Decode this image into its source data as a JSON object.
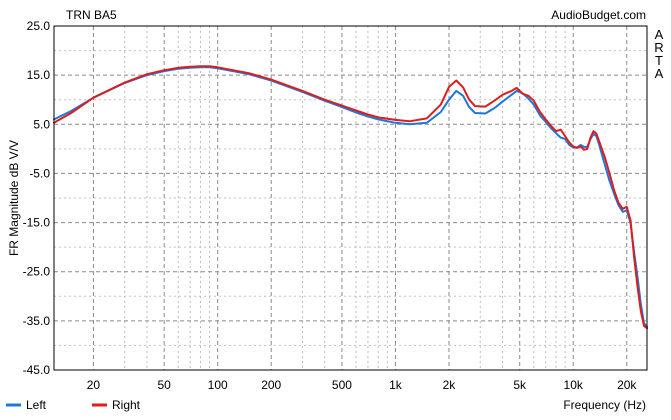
{
  "chart_data": {
    "type": "line",
    "title": "TRN BA5",
    "watermark": "AudioBudget.com",
    "side_label": [
      "A",
      "R",
      "T",
      "A"
    ],
    "xlabel": "Frequency (Hz)",
    "ylabel": "FR Magnitude dB V/V",
    "x_scale": "log",
    "xlim": [
      12,
      26000
    ],
    "ylim": [
      -45,
      25
    ],
    "grid": true,
    "legend_position": "bottom-left",
    "x_ticks": [
      {
        "value": 20,
        "label": "20"
      },
      {
        "value": 50,
        "label": "50"
      },
      {
        "value": 100,
        "label": "100"
      },
      {
        "value": 200,
        "label": "200"
      },
      {
        "value": 500,
        "label": "500"
      },
      {
        "value": 1000,
        "label": "1k"
      },
      {
        "value": 2000,
        "label": "2k"
      },
      {
        "value": 5000,
        "label": "5k"
      },
      {
        "value": 10000,
        "label": "10k"
      },
      {
        "value": 20000,
        "label": "20k"
      }
    ],
    "y_ticks": [
      {
        "value": 25,
        "label": "25.0"
      },
      {
        "value": 15,
        "label": "15.0"
      },
      {
        "value": 5,
        "label": "5.0"
      },
      {
        "value": -5,
        "label": "-5.0"
      },
      {
        "value": -15,
        "label": "-15.0"
      },
      {
        "value": -25,
        "label": "-25.0"
      },
      {
        "value": -35,
        "label": "-35.0"
      },
      {
        "value": -45,
        "label": "-45.0"
      }
    ],
    "series": [
      {
        "name": "Left",
        "color": "#1e78dc",
        "points": [
          [
            12,
            6.0
          ],
          [
            15,
            7.7
          ],
          [
            20,
            10.4
          ],
          [
            30,
            13.4
          ],
          [
            40,
            15.0
          ],
          [
            50,
            15.8
          ],
          [
            60,
            16.3
          ],
          [
            70,
            16.5
          ],
          [
            80,
            16.6
          ],
          [
            90,
            16.6
          ],
          [
            100,
            16.4
          ],
          [
            150,
            15.2
          ],
          [
            200,
            13.9
          ],
          [
            300,
            11.6
          ],
          [
            400,
            9.8
          ],
          [
            500,
            8.5
          ],
          [
            600,
            7.4
          ],
          [
            700,
            6.6
          ],
          [
            800,
            6.0
          ],
          [
            1000,
            5.3
          ],
          [
            1200,
            5.0
          ],
          [
            1500,
            5.3
          ],
          [
            1800,
            7.5
          ],
          [
            2000,
            10.0
          ],
          [
            2200,
            11.8
          ],
          [
            2400,
            10.8
          ],
          [
            2600,
            8.5
          ],
          [
            2800,
            7.3
          ],
          [
            3200,
            7.2
          ],
          [
            3600,
            8.3
          ],
          [
            4000,
            9.6
          ],
          [
            4500,
            11.0
          ],
          [
            4800,
            11.8
          ],
          [
            5200,
            11.3
          ],
          [
            5600,
            10.2
          ],
          [
            6000,
            9.0
          ],
          [
            6500,
            6.8
          ],
          [
            7000,
            5.5
          ],
          [
            7500,
            4.2
          ],
          [
            8000,
            3.2
          ],
          [
            8500,
            2.3
          ],
          [
            9000,
            2.0
          ],
          [
            9500,
            0.8
          ],
          [
            10000,
            0.3
          ],
          [
            10500,
            0.3
          ],
          [
            11000,
            0.8
          ],
          [
            11500,
            0.4
          ],
          [
            12000,
            0.4
          ],
          [
            12500,
            2.0
          ],
          [
            13000,
            3.0
          ],
          [
            13500,
            2.6
          ],
          [
            14000,
            0.8
          ],
          [
            15000,
            -3.0
          ],
          [
            16000,
            -6.5
          ],
          [
            17000,
            -9.2
          ],
          [
            18000,
            -11.5
          ],
          [
            19000,
            -12.8
          ],
          [
            20000,
            -12.5
          ],
          [
            21000,
            -15.0
          ],
          [
            22000,
            -21.0
          ],
          [
            23000,
            -26.0
          ],
          [
            24000,
            -31.5
          ],
          [
            25000,
            -35.5
          ],
          [
            26000,
            -36.2
          ]
        ]
      },
      {
        "name": "Right",
        "color": "#dc1e1e",
        "points": [
          [
            12,
            5.3
          ],
          [
            15,
            7.3
          ],
          [
            20,
            10.4
          ],
          [
            30,
            13.5
          ],
          [
            40,
            15.2
          ],
          [
            50,
            16.0
          ],
          [
            60,
            16.5
          ],
          [
            70,
            16.7
          ],
          [
            80,
            16.8
          ],
          [
            90,
            16.8
          ],
          [
            100,
            16.6
          ],
          [
            150,
            15.4
          ],
          [
            200,
            14.1
          ],
          [
            300,
            11.8
          ],
          [
            400,
            10.0
          ],
          [
            500,
            8.8
          ],
          [
            600,
            7.8
          ],
          [
            700,
            7.0
          ],
          [
            800,
            6.4
          ],
          [
            1000,
            5.9
          ],
          [
            1200,
            5.6
          ],
          [
            1500,
            6.2
          ],
          [
            1800,
            9.0
          ],
          [
            2000,
            12.6
          ],
          [
            2200,
            13.9
          ],
          [
            2400,
            12.5
          ],
          [
            2600,
            10.0
          ],
          [
            2800,
            8.7
          ],
          [
            3200,
            8.6
          ],
          [
            3600,
            9.8
          ],
          [
            4000,
            11.0
          ],
          [
            4500,
            11.8
          ],
          [
            4800,
            12.4
          ],
          [
            5200,
            11.2
          ],
          [
            5600,
            10.8
          ],
          [
            6000,
            9.8
          ],
          [
            6500,
            7.5
          ],
          [
            7000,
            6.0
          ],
          [
            7500,
            4.7
          ],
          [
            8000,
            3.6
          ],
          [
            8500,
            3.9
          ],
          [
            9000,
            2.6
          ],
          [
            9500,
            1.3
          ],
          [
            10000,
            0.5
          ],
          [
            10500,
            0.2
          ],
          [
            11000,
            0.5
          ],
          [
            11500,
            -0.2
          ],
          [
            12000,
            0.0
          ],
          [
            12500,
            2.3
          ],
          [
            13000,
            3.6
          ],
          [
            13500,
            3.1
          ],
          [
            14000,
            1.5
          ],
          [
            15000,
            -1.5
          ],
          [
            16000,
            -5.0
          ],
          [
            17000,
            -8.5
          ],
          [
            18000,
            -11.0
          ],
          [
            19000,
            -12.2
          ],
          [
            20000,
            -11.8
          ],
          [
            21000,
            -14.5
          ],
          [
            22000,
            -22.0
          ],
          [
            23000,
            -28.0
          ],
          [
            24000,
            -33.0
          ],
          [
            25000,
            -36.0
          ],
          [
            26000,
            -36.5
          ]
        ]
      }
    ]
  }
}
